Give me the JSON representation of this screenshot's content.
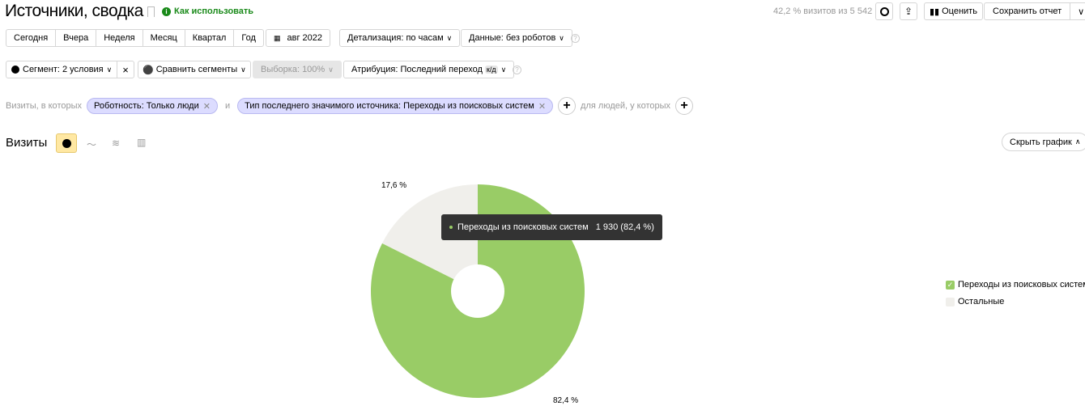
{
  "header": {
    "title": "Источники, сводка",
    "help_link": "Как использовать",
    "visits_info": "42,2 % визитов из 5 542",
    "rate_label": "Оценить",
    "save_label": "Сохранить отчет"
  },
  "periods": [
    "Сегодня",
    "Вчера",
    "Неделя",
    "Месяц",
    "Квартал",
    "Год"
  ],
  "date_label": "авг 2022",
  "detail_label": "Детализация: по часам",
  "data_label": "Данные: без роботов",
  "segment_label": "Сегмент: 2 условия",
  "compare_label": "Сравнить сегменты",
  "sample_label": "Выборка: 100%",
  "attribution_label": "Атрибуция: Последний переход",
  "attribution_badge": "к/д",
  "filters": {
    "prefix": "Визиты, в которых",
    "chip1": "Роботность: Только люди",
    "and": "и",
    "chip2": "Тип последнего значимого источника: Переходы из поисковых систем",
    "people": "для людей, у которых"
  },
  "chart_section": {
    "title": "Визиты",
    "hide_label": "Скрыть график"
  },
  "tooltip": {
    "name": "Переходы из поисковых систем",
    "value": "1 930 (82,4 %)"
  },
  "chart_data": {
    "type": "pie",
    "donut": true,
    "slices": [
      {
        "name": "Переходы из поисковых систем",
        "percent": 82.4,
        "label": "82,4 %",
        "color": "#99cc66",
        "visits": 1930
      },
      {
        "name": "Остальные",
        "percent": 17.6,
        "label": "17,6 %",
        "color": "#f0efeb"
      }
    ],
    "legend_position": "right"
  }
}
